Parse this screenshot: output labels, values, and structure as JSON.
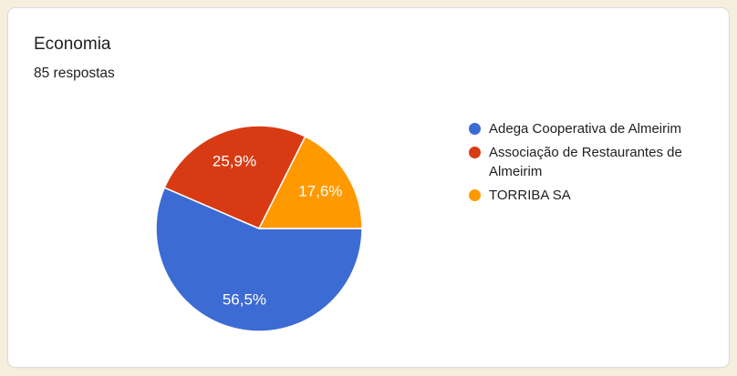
{
  "header": {
    "title": "Economia",
    "responses": "85 respostas"
  },
  "chart_data": {
    "type": "pie",
    "title": "Economia",
    "subtitle": "85 respostas",
    "legend_position": "right",
    "start_angle_deg": 90,
    "label_radius_ratio": 0.7,
    "slices": [
      {
        "name": "Adega Cooperativa de Almeirim",
        "pct": 56.5,
        "pct_label": "56,5%",
        "color": "#3C6BD3"
      },
      {
        "name": "Associação de Restaurantes de Almeirim",
        "pct": 25.9,
        "pct_label": "25,9%",
        "color": "#D83B14"
      },
      {
        "name": "TORRIBA SA",
        "pct": 17.6,
        "pct_label": "17,6%",
        "color": "#FF9900"
      }
    ]
  },
  "theme": {
    "page_background": "#F7EFDE",
    "card_background": "#FFFFFF",
    "card_border": "#DADCE0",
    "text_color": "#202124",
    "slice_label_color": "#FFFFFF"
  }
}
